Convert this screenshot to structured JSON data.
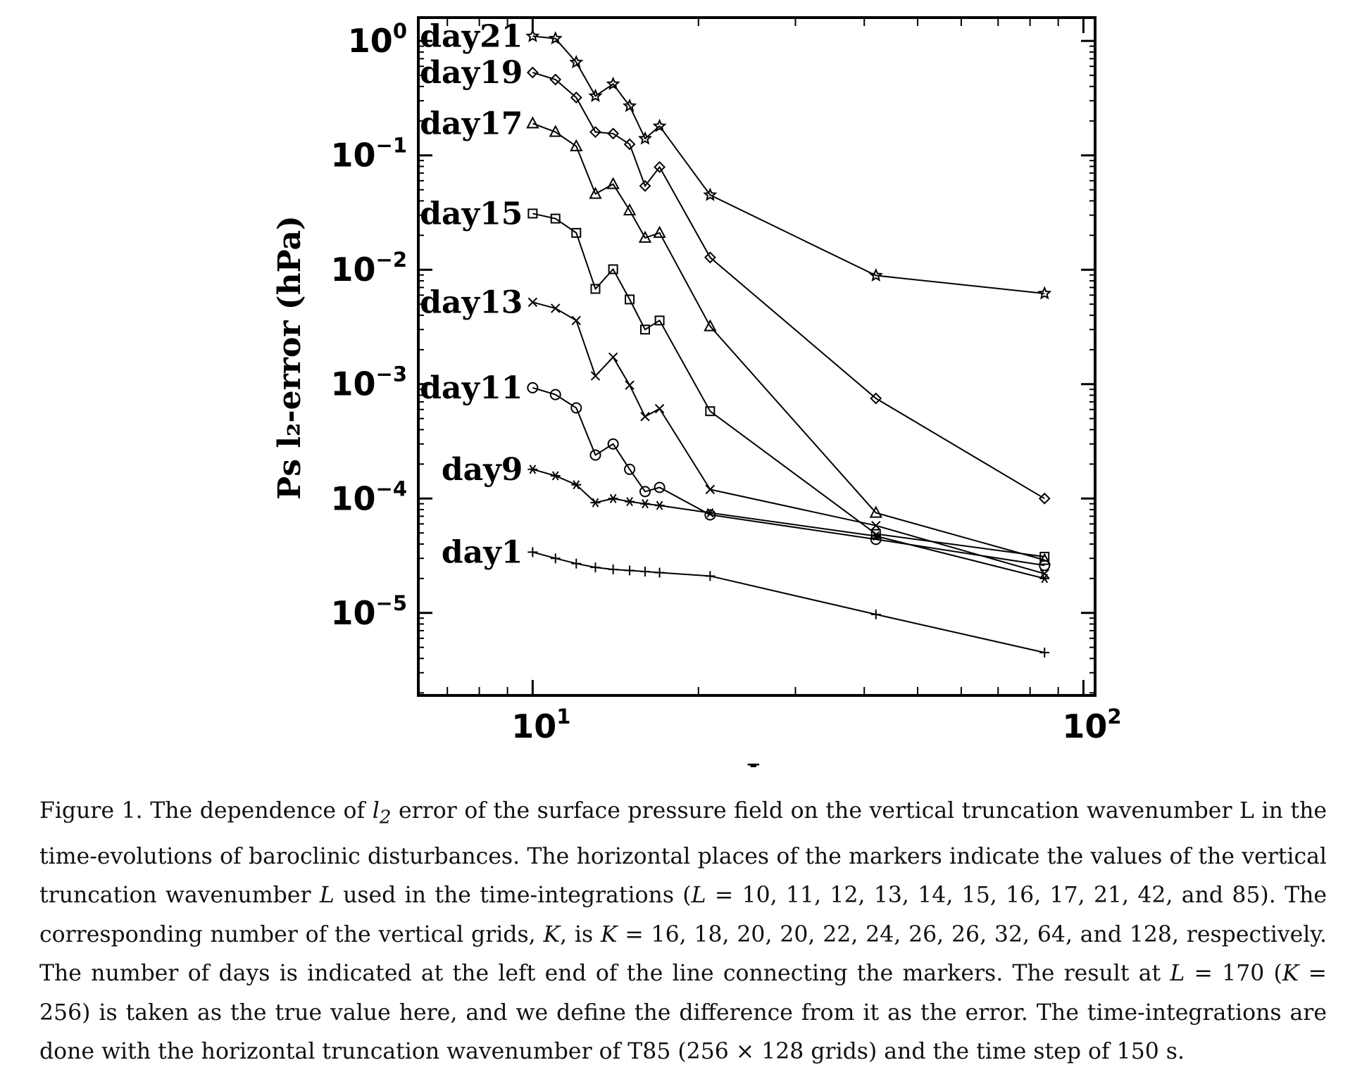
{
  "chart_data": {
    "type": "line",
    "x_scale": "log",
    "y_scale": "log",
    "xlim": [
      6.2,
      105
    ],
    "ylim": [
      1.9e-06,
      1.6
    ],
    "xlabel": "L",
    "ylabel": "Ps l₂-error (hPa)",
    "x_ticks": [
      {
        "value": 10,
        "base": "10",
        "exp": "1"
      },
      {
        "value": 100,
        "base": "10",
        "exp": "2"
      }
    ],
    "y_ticks": [
      {
        "value": 1,
        "base": "10",
        "exp": "0"
      },
      {
        "value": 0.1,
        "base": "10",
        "exp": "−1"
      },
      {
        "value": 0.01,
        "base": "10",
        "exp": "−2"
      },
      {
        "value": 0.001,
        "base": "10",
        "exp": "−3"
      },
      {
        "value": 0.0001,
        "base": "10",
        "exp": "−4"
      },
      {
        "value": 1e-05,
        "base": "10",
        "exp": "−5"
      }
    ],
    "x": [
      10,
      11,
      12,
      13,
      14,
      15,
      16,
      17,
      21,
      42,
      85
    ],
    "grid": false,
    "series": [
      {
        "name": "day21",
        "marker": "star",
        "values": [
          1.1,
          1.05,
          0.65,
          0.33,
          0.42,
          0.27,
          0.14,
          0.18,
          0.045,
          0.0089,
          0.0062
        ]
      },
      {
        "name": "day19",
        "marker": "diamond",
        "values": [
          0.53,
          0.46,
          0.32,
          0.16,
          0.155,
          0.125,
          0.054,
          0.079,
          0.0128,
          0.00075,
          0.0001
        ]
      },
      {
        "name": "day17",
        "marker": "triangle",
        "values": [
          0.19,
          0.16,
          0.12,
          0.046,
          0.056,
          0.033,
          0.019,
          0.021,
          0.0032,
          7.5e-05,
          2.9e-05
        ]
      },
      {
        "name": "day15",
        "marker": "square",
        "values": [
          0.031,
          0.028,
          0.021,
          0.0068,
          0.0101,
          0.0055,
          0.003,
          0.0036,
          0.00058,
          4.9e-05,
          3.1e-05
        ]
      },
      {
        "name": "day13",
        "marker": "cross",
        "values": [
          0.0052,
          0.0046,
          0.0036,
          0.00118,
          0.00172,
          0.00098,
          0.00052,
          0.00061,
          0.00012,
          5.8e-05,
          2.2e-05
        ]
      },
      {
        "name": "day11",
        "marker": "circle",
        "values": [
          0.00093,
          0.00081,
          0.00062,
          0.00024,
          0.0003,
          0.00018,
          0.000115,
          0.000125,
          7.2e-05,
          4.4e-05,
          2.6e-05
        ]
      },
      {
        "name": "day9",
        "marker": "asterisk",
        "values": [
          0.00018,
          0.000158,
          0.000132,
          9.2e-05,
          0.0001,
          9.4e-05,
          9e-05,
          8.7e-05,
          7.5e-05,
          4.7e-05,
          2e-05
        ]
      },
      {
        "name": "day1",
        "marker": "plus",
        "values": [
          3.4e-05,
          3e-05,
          2.7e-05,
          2.5e-05,
          2.4e-05,
          2.35e-05,
          2.3e-05,
          2.25e-05,
          2.1e-05,
          9.7e-06,
          4.5e-06
        ]
      }
    ]
  },
  "caption": {
    "figure_label": "Figure 1.",
    "part1": " The dependence of ",
    "l2_base": "l",
    "l2_sub": "2",
    "part2": " error of the surface pressure field on the vertical truncation wavenumber L in the time-evolutions of baroclinic disturbances. The horizontal places of the markers indicate the values of the vertical truncation wavenumber ",
    "L_1": "L",
    "part3": " used in the time-integrations (",
    "L_2": "L",
    "part4": " = 10, 11, 12, 13, 14, 15, 16, 17, 21, 42, and 85). The corresponding number of the vertical grids, ",
    "K_1": "K",
    "part5": ", is ",
    "K_2": "K",
    "part6": " = 16, 18, 20, 20, 22, 24, 26, 26, 32, 64, and 128, respectively. The number of days is indicated at the left end of the line connecting the markers. The result at ",
    "L_3": "L",
    "part7": " = 170 (",
    "K_3": "K",
    "part8": " = 256) is taken as the true value here, and we define the difference from it as the error. The time-integrations are done with the horizontal truncation wavenumber of T85 (256 × 128 grids) and the time step of 150 s."
  }
}
